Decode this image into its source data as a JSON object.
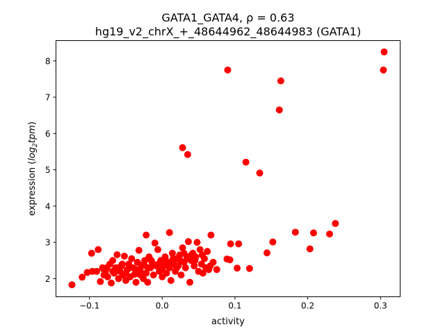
{
  "chart_data": {
    "type": "scatter",
    "title_line1": "GATA1_GATA4, ρ = 0.63",
    "title_line2": "hg19_v2_chrX_+_48644962_48644983 (GATA1)",
    "xlabel": "activity",
    "ylabel": {
      "prefix": "expression (",
      "log": "log",
      "sub": "2",
      "tpm": "tpm",
      "suffix": ")"
    },
    "xlim": [
      -0.146,
      0.327
    ],
    "ylim": [
      1.5,
      8.56
    ],
    "xticks": [
      {
        "v": -0.1,
        "label": "−0.1"
      },
      {
        "v": 0.0,
        "label": "0.0"
      },
      {
        "v": 0.1,
        "label": "0.1"
      },
      {
        "v": 0.2,
        "label": "0.2"
      },
      {
        "v": 0.3,
        "label": "0.3"
      }
    ],
    "yticks": [
      {
        "v": 2,
        "label": "2"
      },
      {
        "v": 3,
        "label": "3"
      },
      {
        "v": 4,
        "label": "4"
      },
      {
        "v": 5,
        "label": "5"
      },
      {
        "v": 6,
        "label": "6"
      },
      {
        "v": 7,
        "label": "7"
      },
      {
        "v": 8,
        "label": "8"
      }
    ],
    "marker_color": "#ff0000",
    "grid": false,
    "points": [
      [
        0.305,
        8.25
      ],
      [
        0.304,
        7.75
      ],
      [
        0.09,
        7.75
      ],
      [
        0.163,
        7.45
      ],
      [
        0.161,
        6.65
      ],
      [
        0.028,
        5.61
      ],
      [
        0.035,
        5.42
      ],
      [
        0.115,
        5.21
      ],
      [
        0.134,
        4.91
      ],
      [
        0.238,
        3.52
      ],
      [
        0.23,
        3.23
      ],
      [
        0.208,
        3.26
      ],
      [
        0.183,
        3.28
      ],
      [
        0.152,
        3.01
      ],
      [
        0.203,
        2.82
      ],
      [
        0.144,
        2.71
      ],
      [
        0.12,
        2.28
      ],
      [
        0.103,
        2.29
      ],
      [
        0.105,
        2.96
      ],
      [
        0.094,
        2.96
      ],
      [
        0.089,
        2.54
      ],
      [
        0.093,
        2.52
      ],
      [
        0.075,
        2.25
      ],
      [
        0.067,
        3.2
      ],
      [
        0.01,
        3.27
      ],
      [
        -0.022,
        3.2
      ],
      [
        -0.124,
        1.83
      ],
      [
        -0.11,
        2.04
      ],
      [
        -0.103,
        2.17
      ],
      [
        -0.096,
        2.2
      ],
      [
        -0.097,
        2.7
      ],
      [
        -0.088,
        2.8
      ],
      [
        -0.085,
        1.92
      ],
      [
        -0.082,
        2.3
      ],
      [
        -0.08,
        2.1
      ],
      [
        -0.078,
        2.2
      ],
      [
        -0.075,
        2.05
      ],
      [
        -0.072,
        2.4
      ],
      [
        -0.07,
        1.88
      ],
      [
        -0.068,
        2.5
      ],
      [
        -0.066,
        2.15
      ],
      [
        -0.064,
        2.3
      ],
      [
        -0.062,
        2.66
      ],
      [
        -0.06,
        2.0
      ],
      [
        -0.058,
        2.2
      ],
      [
        -0.056,
        2.35
      ],
      [
        -0.054,
        2.1
      ],
      [
        -0.052,
        2.62
      ],
      [
        -0.05,
        1.95
      ],
      [
        -0.048,
        2.25
      ],
      [
        -0.046,
        2.4
      ],
      [
        -0.044,
        2.05
      ],
      [
        -0.042,
        2.55
      ],
      [
        -0.04,
        2.3
      ],
      [
        -0.038,
        2.12
      ],
      [
        -0.036,
        1.9
      ],
      [
        -0.034,
        2.45
      ],
      [
        -0.032,
        2.78
      ],
      [
        -0.03,
        2.2
      ],
      [
        -0.028,
        2.35
      ],
      [
        -0.026,
        2.0
      ],
      [
        -0.024,
        2.5
      ],
      [
        -0.022,
        2.15
      ],
      [
        -0.02,
        1.9
      ],
      [
        -0.018,
        2.6
      ],
      [
        -0.016,
        2.3
      ],
      [
        -0.014,
        2.45
      ],
      [
        -0.012,
        2.1
      ],
      [
        -0.01,
        2.98
      ],
      [
        -0.008,
        2.35
      ],
      [
        -0.006,
        2.8
      ],
      [
        -0.004,
        2.2
      ],
      [
        -0.002,
        2.5
      ],
      [
        0.0,
        2.05
      ],
      [
        0.002,
        2.35
      ],
      [
        0.004,
        2.6
      ],
      [
        0.006,
        2.15
      ],
      [
        0.008,
        2.45
      ],
      [
        0.01,
        2.3
      ],
      [
        0.012,
        1.95
      ],
      [
        0.014,
        2.7
      ],
      [
        0.016,
        2.4
      ],
      [
        0.018,
        2.2
      ],
      [
        0.02,
        2.55
      ],
      [
        0.022,
        2.35
      ],
      [
        0.024,
        2.65
      ],
      [
        0.026,
        2.1
      ],
      [
        0.028,
        2.85
      ],
      [
        0.03,
        2.45
      ],
      [
        0.032,
        2.3
      ],
      [
        0.034,
        2.6
      ],
      [
        0.036,
        3.02
      ],
      [
        0.038,
        1.9
      ],
      [
        0.04,
        2.5
      ],
      [
        0.042,
        2.7
      ],
      [
        0.044,
        2.35
      ],
      [
        0.046,
        2.6
      ],
      [
        0.048,
        3.0
      ],
      [
        0.05,
        2.2
      ],
      [
        0.052,
        2.8
      ],
      [
        0.054,
        2.4
      ],
      [
        0.056,
        2.15
      ],
      [
        0.058,
        2.55
      ],
      [
        0.06,
        2.3
      ],
      [
        0.062,
        2.75
      ],
      [
        0.064,
        2.25
      ],
      [
        0.066,
        2.35
      ],
      [
        0.07,
        2.45
      ],
      [
        -0.09,
        2.2
      ],
      [
        -0.076,
        2.3
      ],
      [
        -0.068,
        2.2
      ],
      [
        -0.055,
        2.4
      ],
      [
        -0.045,
        2.3
      ],
      [
        -0.035,
        2.25
      ],
      [
        -0.025,
        2.4
      ],
      [
        -0.015,
        2.5
      ],
      [
        -0.005,
        2.4
      ],
      [
        0.005,
        2.5
      ],
      [
        0.015,
        2.55
      ],
      [
        0.025,
        2.5
      ],
      [
        0.035,
        2.55
      ],
      [
        0.045,
        2.5
      ],
      [
        -0.06,
        2.3
      ],
      [
        -0.03,
        2.1
      ],
      [
        0.0,
        2.25
      ],
      [
        0.02,
        2.3
      ],
      [
        -0.05,
        2.15
      ],
      [
        0.01,
        2.4
      ],
      [
        0.04,
        2.65
      ],
      [
        -0.08,
        2.25
      ],
      [
        0.03,
        2.7
      ],
      [
        0.055,
        2.65
      ],
      [
        -0.02,
        2.3
      ]
    ]
  }
}
